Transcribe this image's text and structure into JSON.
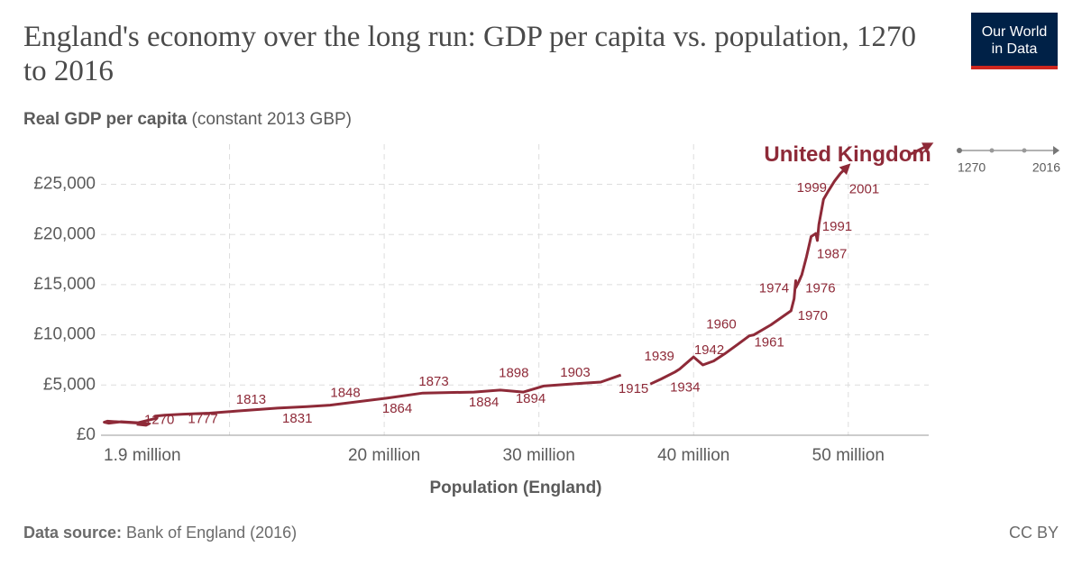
{
  "chart_data": {
    "type": "connected_scatter",
    "title": "England's economy over the long run: GDP per capita vs. population, 1270 to 2016",
    "y_label": "Real GDP per capita",
    "y_unit": " (constant 2013 GBP)",
    "x_label": "Population (England)",
    "xlim": [
      1.9,
      55.2
    ],
    "ylim": [
      0,
      29000
    ],
    "xticks": [
      {
        "value": 1.9,
        "label": "1.9 million"
      },
      {
        "value": 10,
        "label": null
      },
      {
        "value": 20,
        "label": "20 million"
      },
      {
        "value": 30,
        "label": "30 million"
      },
      {
        "value": 40,
        "label": "40 million"
      },
      {
        "value": 50,
        "label": "50 million"
      }
    ],
    "yticks": [
      {
        "value": 0,
        "label": "£0"
      },
      {
        "value": 5000,
        "label": "£5,000"
      },
      {
        "value": 10000,
        "label": "£10,000"
      },
      {
        "value": 15000,
        "label": "£15,000"
      },
      {
        "value": 20000,
        "label": "£20,000"
      },
      {
        "value": 25000,
        "label": "£25,000"
      }
    ],
    "grid": true,
    "series": [
      {
        "name": "United Kingdom",
        "color": "#8e2a38",
        "x": [
          4.0,
          4.6,
          4.8,
          2.1,
          1.9,
          2.2,
          3.0,
          4.1,
          5.3,
          5.2,
          5.8,
          7.0,
          8.7,
          10.4,
          13.1,
          15.0,
          16.5,
          20.2,
          22.5,
          25.8,
          27.5,
          29.0,
          30.3,
          32.0,
          34.0,
          35.3,
          null,
          37.2,
          37.9,
          38.8,
          39.1,
          40.0,
          40.6,
          41.3,
          42.0,
          42.8,
          43.6,
          43.9,
          45.0,
          46.3,
          46.5,
          46.6,
          46.6,
          46.8,
          47.0,
          47.3,
          47.6,
          47.9,
          48.0,
          48.1,
          48.4,
          48.7,
          49.1,
          49.5,
          49.9
        ],
        "values": [
          1100,
          1000,
          1150,
          1400,
          1300,
          1200,
          1350,
          1250,
          1700,
          1900,
          2000,
          2100,
          2200,
          2400,
          2700,
          2850,
          3000,
          3700,
          4200,
          4300,
          4500,
          4300,
          4900,
          5100,
          5300,
          6000,
          null,
          5100,
          5600,
          6300,
          6600,
          7800,
          7000,
          7400,
          8100,
          9000,
          9900,
          10000,
          11000,
          12400,
          13600,
          15400,
          14700,
          15300,
          16000,
          17800,
          19800,
          20100,
          19400,
          21000,
          23500,
          24300,
          25300,
          26100,
          26700
        ],
        "point_labels": [
          "1270",
          null,
          null,
          null,
          null,
          null,
          null,
          null,
          null,
          null,
          null,
          "1777",
          null,
          "1813",
          "1831",
          null,
          "1848",
          "1864",
          "1873",
          "1884",
          null,
          "1894",
          "1898",
          "1903",
          null,
          "1915",
          null,
          null,
          null,
          null,
          "1934",
          "1939",
          "1942",
          null,
          null,
          null,
          "1960",
          "1961",
          null,
          "1970",
          null,
          "1974",
          null,
          "1976",
          null,
          null,
          "1987",
          null,
          "1991",
          null,
          "1999",
          "2001",
          null,
          null,
          null
        ]
      }
    ]
  },
  "timeline": [
    1270,
    2016
  ],
  "logo": [
    "Our World",
    "in Data"
  ],
  "footer": {
    "source_label": "Data source:",
    "source": " Bank of England (2016)",
    "license": "CC BY"
  }
}
